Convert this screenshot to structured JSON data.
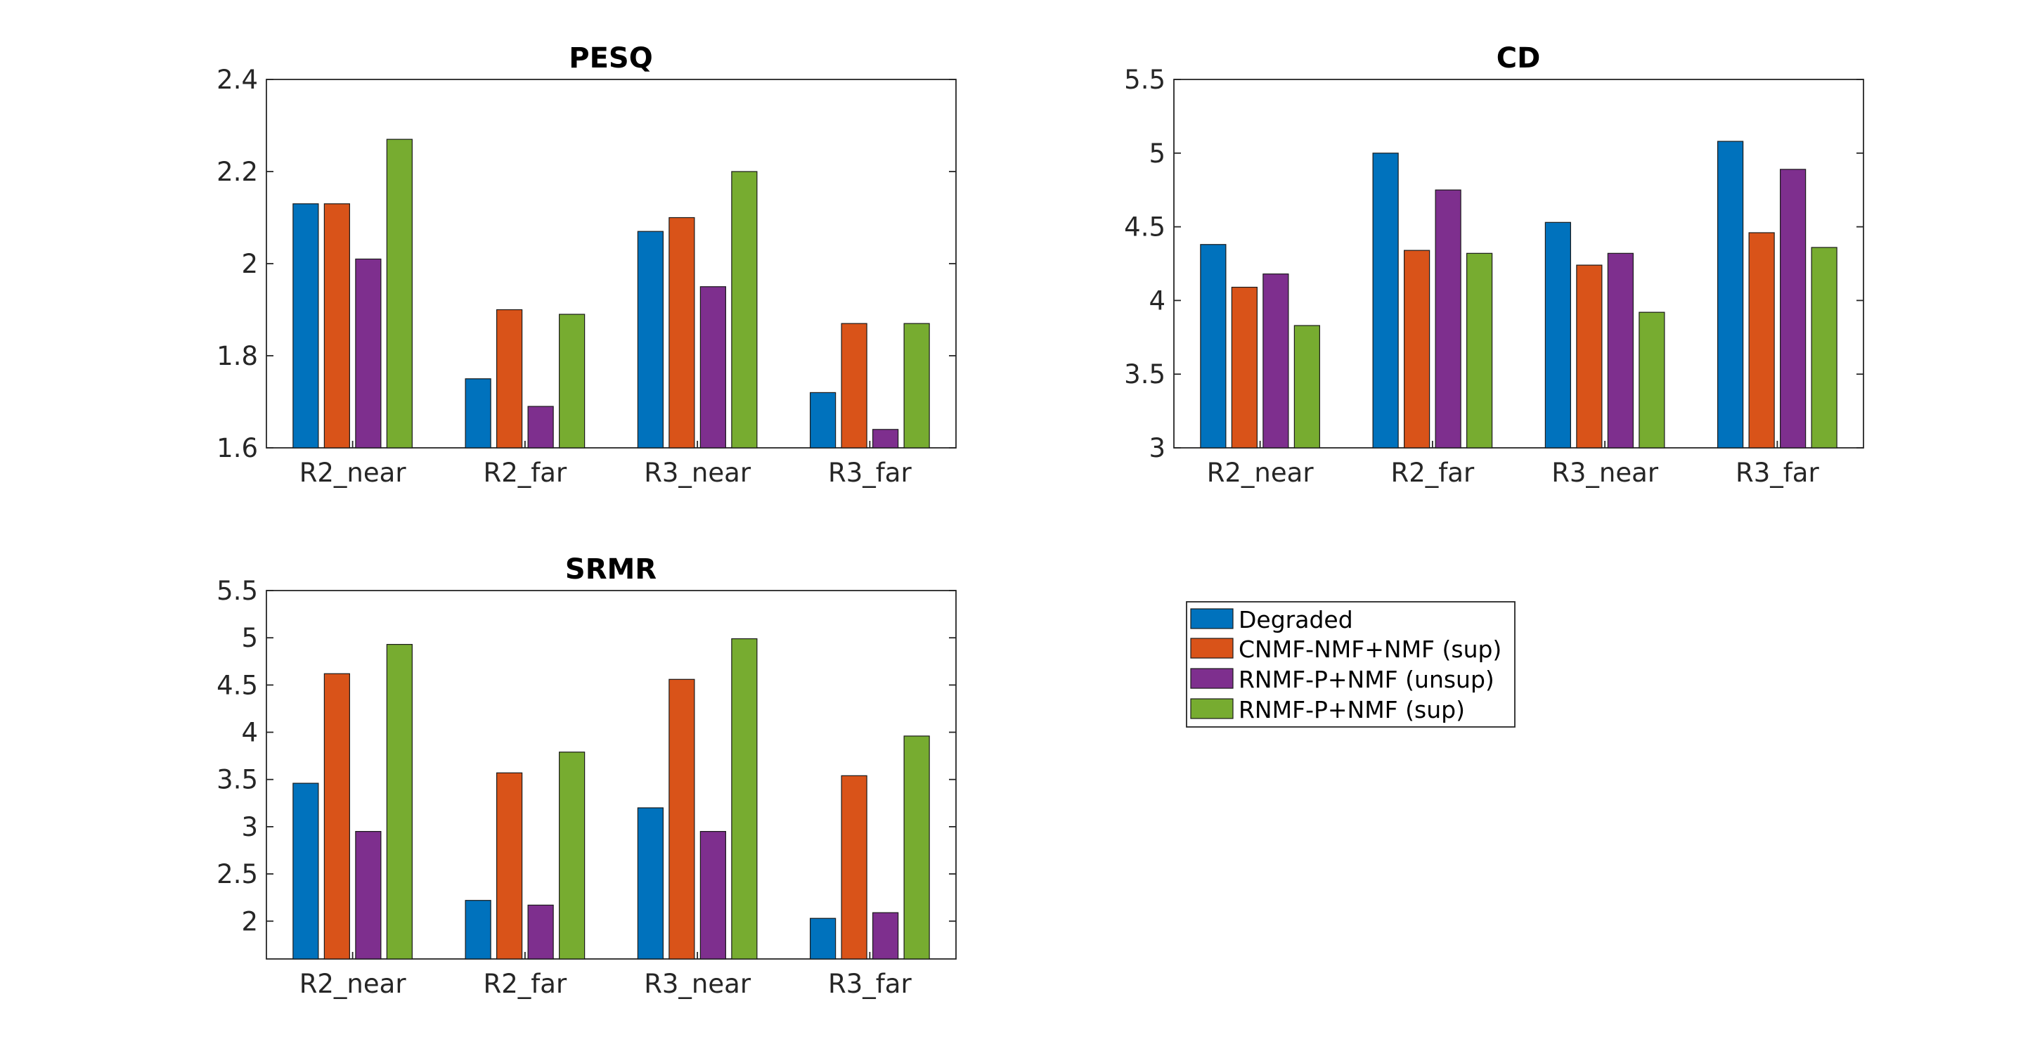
{
  "chart_data": [
    {
      "type": "bar",
      "title": "PESQ",
      "categories": [
        "R2_near",
        "R2_far",
        "R3_near",
        "R3_far"
      ],
      "ylim": [
        1.6,
        2.4
      ],
      "yticks": [
        "1.6",
        "1.8",
        "2",
        "2.2",
        "2.4"
      ],
      "series": [
        {
          "name": "Degraded",
          "values": [
            2.13,
            1.75,
            2.07,
            1.72
          ]
        },
        {
          "name": "CNMF-NMF+NMF (sup)",
          "values": [
            2.13,
            1.9,
            2.1,
            1.87
          ]
        },
        {
          "name": "RNMF-P+NMF (unsup)",
          "values": [
            2.01,
            1.69,
            1.95,
            1.64
          ]
        },
        {
          "name": "RNMF-P+NMF (sup)",
          "values": [
            2.27,
            1.89,
            2.2,
            1.87
          ]
        }
      ],
      "grid": false
    },
    {
      "type": "bar",
      "title": "CD",
      "categories": [
        "R2_near",
        "R2_far",
        "R3_near",
        "R3_far"
      ],
      "ylim": [
        3,
        5.5
      ],
      "yticks": [
        "3",
        "3.5",
        "4",
        "4.5",
        "5",
        "5.5"
      ],
      "series": [
        {
          "name": "Degraded",
          "values": [
            4.38,
            5.0,
            4.53,
            5.08
          ]
        },
        {
          "name": "CNMF-NMF+NMF (sup)",
          "values": [
            4.09,
            4.34,
            4.24,
            4.46
          ]
        },
        {
          "name": "RNMF-P+NMF (unsup)",
          "values": [
            4.18,
            4.75,
            4.32,
            4.89
          ]
        },
        {
          "name": "RNMF-P+NMF (sup)",
          "values": [
            3.83,
            4.32,
            3.92,
            4.36
          ]
        }
      ],
      "grid": false
    },
    {
      "type": "bar",
      "title": "SRMR",
      "categories": [
        "R2_near",
        "R2_far",
        "R3_near",
        "R3_far"
      ],
      "ylim": [
        1.6,
        5.5
      ],
      "yticks": [
        "2",
        "2.5",
        "3",
        "3.5",
        "4",
        "4.5",
        "5",
        "5.5"
      ],
      "series": [
        {
          "name": "Degraded",
          "values": [
            3.46,
            2.22,
            3.2,
            2.03
          ]
        },
        {
          "name": "CNMF-NMF+NMF (sup)",
          "values": [
            4.62,
            3.57,
            4.56,
            3.54
          ]
        },
        {
          "name": "RNMF-P+NMF (unsup)",
          "values": [
            2.95,
            2.17,
            2.95,
            2.09
          ]
        },
        {
          "name": "RNMF-P+NMF (sup)",
          "values": [
            4.93,
            3.79,
            4.99,
            3.96
          ]
        }
      ],
      "grid": false
    }
  ],
  "legend": {
    "placement": "separate-panel-right",
    "entries": [
      {
        "label": "Degraded",
        "color": "#0072BD"
      },
      {
        "label": "CNMF-NMF+NMF (sup)",
        "color": "#D95319"
      },
      {
        "label": "RNMF-P+NMF (unsup)",
        "color": "#7E2F8E"
      },
      {
        "label": "RNMF-P+NMF (sup)",
        "color": "#77AC30"
      }
    ]
  }
}
